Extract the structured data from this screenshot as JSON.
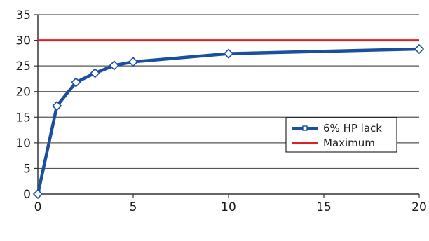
{
  "chart_data": {
    "type": "line",
    "x": [
      0,
      1,
      2,
      3,
      4,
      5,
      10,
      20
    ],
    "series": [
      {
        "name": "6% HP lack",
        "color": "#1a4fa0",
        "marker": "diamond",
        "values": [
          0,
          17.2,
          21.8,
          23.6,
          25.1,
          25.8,
          27.4,
          28.3
        ]
      },
      {
        "name": "Maximum",
        "color": "#e02020",
        "marker": "none",
        "constant": 30
      }
    ],
    "xticks": [
      0,
      5,
      10,
      15,
      20
    ],
    "yticks": [
      0,
      5,
      10,
      15,
      20,
      25,
      30,
      35
    ],
    "xlim": [
      0,
      20
    ],
    "ylim": [
      0,
      35
    ],
    "grid": "horizontal",
    "legend_position": "right-middle",
    "title": "",
    "xlabel": "",
    "ylabel": ""
  }
}
